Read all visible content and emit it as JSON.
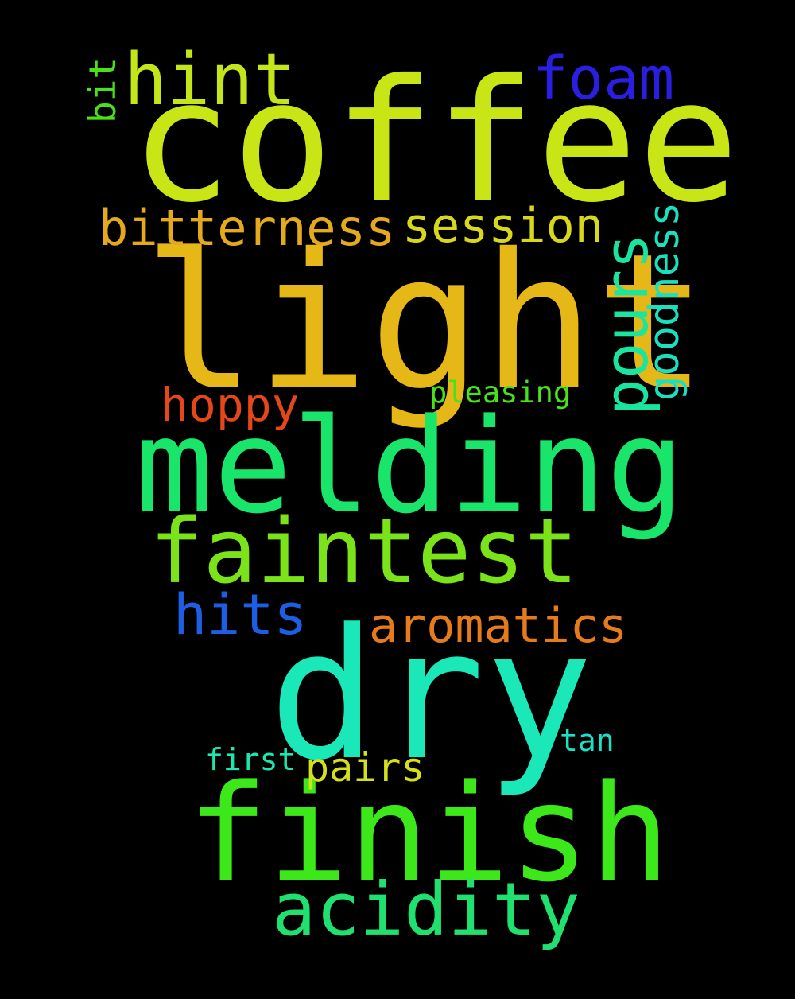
{
  "words": [
    {
      "id": "coffee",
      "text": "coffee",
      "color": "#c9e515"
    },
    {
      "id": "light",
      "text": "light",
      "color": "#e5b818"
    },
    {
      "id": "melding",
      "text": "melding",
      "color": "#18e56a"
    },
    {
      "id": "dry",
      "text": "dry",
      "color": "#1ae8b8"
    },
    {
      "id": "finish",
      "text": "finish",
      "color": "#3de81a"
    },
    {
      "id": "faintest",
      "text": "faintest",
      "color": "#7be31a"
    },
    {
      "id": "acidity",
      "text": "acidity",
      "color": "#20e070"
    },
    {
      "id": "hint",
      "text": "hint",
      "color": "#c4e51a"
    },
    {
      "id": "foam",
      "text": "foam",
      "color": "#2a1ee0"
    },
    {
      "id": "bitterness",
      "text": "bitterness",
      "color": "#e5a91c"
    },
    {
      "id": "session",
      "text": "session",
      "color": "#d8d81a"
    },
    {
      "id": "pours",
      "text": "pours",
      "color": "#19e5a0"
    },
    {
      "id": "goodness",
      "text": "goodness",
      "color": "#1ae0c0"
    },
    {
      "id": "hoppy",
      "text": "hoppy",
      "color": "#e5461a"
    },
    {
      "id": "hits",
      "text": "hits",
      "color": "#1e5ee5"
    },
    {
      "id": "aromatics",
      "text": "aromatics",
      "color": "#e57b1a"
    },
    {
      "id": "pleasing",
      "text": "pleasing",
      "color": "#4ae01a"
    },
    {
      "id": "bit",
      "text": "bit",
      "color": "#4be01a"
    },
    {
      "id": "first",
      "text": "first",
      "color": "#1ae8b0"
    },
    {
      "id": "pairs",
      "text": "pairs",
      "color": "#d4e01a"
    },
    {
      "id": "tan",
      "text": "tan",
      "color": "#1ae0c8"
    }
  ]
}
